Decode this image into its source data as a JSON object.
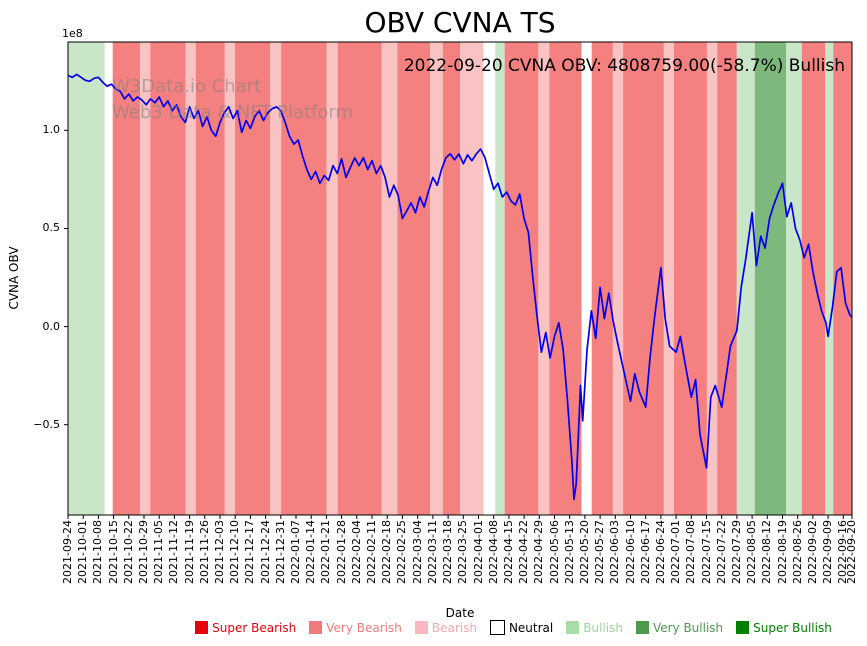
{
  "title": "OBV CVNA TS",
  "annotation": "2022-09-20 CVNA OBV: 4808759.00(-58.7%) Bullish",
  "watermark": {
    "line1": "W3Data.io Chart",
    "line2": "Web3 Data & NFT Platform"
  },
  "chart_data": {
    "type": "line",
    "title": "OBV CVNA TS",
    "xlabel": "Date",
    "ylabel": "CVNA OBV",
    "y_offset_label": "1e8",
    "ylim": [
      -0.96,
      1.45
    ],
    "ytick_values": [
      1.0,
      0.5,
      0.0,
      -0.5
    ],
    "ytick_labels": [
      "1.0",
      "0.5",
      "0.0",
      "−0.5"
    ],
    "x_total_days": 361,
    "xtick_positions": [
      0,
      7,
      14,
      21,
      28,
      35,
      42,
      49,
      56,
      63,
      70,
      77,
      84,
      91,
      98,
      105,
      112,
      119,
      126,
      133,
      140,
      147,
      154,
      161,
      168,
      175,
      182,
      189,
      196,
      203,
      210,
      217,
      224,
      231,
      238,
      245,
      252,
      259,
      266,
      273,
      280,
      287,
      294,
      301,
      308,
      315,
      322,
      329,
      336,
      343,
      350,
      357,
      361
    ],
    "xtick_labels": [
      "2021-09-24",
      "2021-10-01",
      "2021-10-08",
      "2021-10-15",
      "2021-10-22",
      "2021-10-29",
      "2021-11-05",
      "2021-11-12",
      "2021-11-19",
      "2021-11-26",
      "2021-12-03",
      "2021-12-10",
      "2021-12-17",
      "2021-12-24",
      "2021-12-31",
      "2022-01-07",
      "2022-01-14",
      "2022-01-21",
      "2022-01-28",
      "2022-02-04",
      "2022-02-11",
      "2022-02-18",
      "2022-02-25",
      "2022-03-04",
      "2022-03-11",
      "2022-03-18",
      "2022-03-25",
      "2022-04-01",
      "2022-04-08",
      "2022-04-15",
      "2022-04-22",
      "2022-04-29",
      "2022-05-06",
      "2022-05-13",
      "2022-05-20",
      "2022-05-27",
      "2022-06-03",
      "2022-06-10",
      "2022-06-17",
      "2022-06-24",
      "2022-07-01",
      "2022-07-08",
      "2022-07-15",
      "2022-07-22",
      "2022-07-29",
      "2022-08-05",
      "2022-08-12",
      "2022-08-19",
      "2022-08-26",
      "2022-09-02",
      "2022-09-09",
      "2022-09-16",
      "2022-09-20"
    ],
    "series": [
      {
        "name": "CVNA OBV",
        "color": "#0000ee",
        "units": "1e8",
        "points": [
          [
            0,
            1.28
          ],
          [
            2,
            1.27
          ],
          [
            4,
            1.285
          ],
          [
            6,
            1.27
          ],
          [
            8,
            1.255
          ],
          [
            10,
            1.25
          ],
          [
            12,
            1.265
          ],
          [
            14,
            1.27
          ],
          [
            16,
            1.245
          ],
          [
            18,
            1.225
          ],
          [
            20,
            1.235
          ],
          [
            22,
            1.21
          ],
          [
            24,
            1.2
          ],
          [
            26,
            1.16
          ],
          [
            28,
            1.185
          ],
          [
            30,
            1.15
          ],
          [
            32,
            1.17
          ],
          [
            34,
            1.155
          ],
          [
            36,
            1.13
          ],
          [
            38,
            1.16
          ],
          [
            40,
            1.14
          ],
          [
            42,
            1.17
          ],
          [
            44,
            1.12
          ],
          [
            46,
            1.15
          ],
          [
            48,
            1.1
          ],
          [
            50,
            1.13
          ],
          [
            52,
            1.07
          ],
          [
            54,
            1.04
          ],
          [
            56,
            1.12
          ],
          [
            58,
            1.06
          ],
          [
            60,
            1.1
          ],
          [
            62,
            1.02
          ],
          [
            64,
            1.07
          ],
          [
            66,
            1.0
          ],
          [
            68,
            0.97
          ],
          [
            70,
            1.04
          ],
          [
            72,
            1.09
          ],
          [
            74,
            1.12
          ],
          [
            76,
            1.06
          ],
          [
            78,
            1.1
          ],
          [
            80,
            0.99
          ],
          [
            82,
            1.05
          ],
          [
            84,
            1.01
          ],
          [
            86,
            1.07
          ],
          [
            88,
            1.1
          ],
          [
            90,
            1.05
          ],
          [
            92,
            1.09
          ],
          [
            94,
            1.11
          ],
          [
            96,
            1.12
          ],
          [
            98,
            1.1
          ],
          [
            100,
            1.04
          ],
          [
            102,
            0.97
          ],
          [
            104,
            0.93
          ],
          [
            106,
            0.95
          ],
          [
            108,
            0.87
          ],
          [
            110,
            0.8
          ],
          [
            112,
            0.75
          ],
          [
            114,
            0.79
          ],
          [
            116,
            0.73
          ],
          [
            118,
            0.77
          ],
          [
            120,
            0.745
          ],
          [
            122,
            0.82
          ],
          [
            124,
            0.78
          ],
          [
            126,
            0.855
          ],
          [
            128,
            0.76
          ],
          [
            130,
            0.81
          ],
          [
            132,
            0.86
          ],
          [
            134,
            0.82
          ],
          [
            136,
            0.86
          ],
          [
            138,
            0.8
          ],
          [
            140,
            0.845
          ],
          [
            142,
            0.78
          ],
          [
            144,
            0.82
          ],
          [
            146,
            0.76
          ],
          [
            148,
            0.66
          ],
          [
            150,
            0.72
          ],
          [
            152,
            0.67
          ],
          [
            154,
            0.55
          ],
          [
            156,
            0.59
          ],
          [
            158,
            0.63
          ],
          [
            160,
            0.58
          ],
          [
            162,
            0.66
          ],
          [
            164,
            0.61
          ],
          [
            166,
            0.69
          ],
          [
            168,
            0.76
          ],
          [
            170,
            0.72
          ],
          [
            172,
            0.8
          ],
          [
            174,
            0.86
          ],
          [
            176,
            0.88
          ],
          [
            178,
            0.85
          ],
          [
            180,
            0.88
          ],
          [
            182,
            0.83
          ],
          [
            184,
            0.875
          ],
          [
            186,
            0.845
          ],
          [
            188,
            0.88
          ],
          [
            190,
            0.905
          ],
          [
            192,
            0.86
          ],
          [
            194,
            0.78
          ],
          [
            196,
            0.7
          ],
          [
            198,
            0.73
          ],
          [
            200,
            0.66
          ],
          [
            202,
            0.685
          ],
          [
            204,
            0.64
          ],
          [
            206,
            0.62
          ],
          [
            208,
            0.675
          ],
          [
            210,
            0.55
          ],
          [
            212,
            0.48
          ],
          [
            214,
            0.25
          ],
          [
            216,
            0.05
          ],
          [
            218,
            -0.13
          ],
          [
            220,
            -0.03
          ],
          [
            222,
            -0.16
          ],
          [
            224,
            -0.05
          ],
          [
            226,
            0.02
          ],
          [
            228,
            -0.12
          ],
          [
            230,
            -0.38
          ],
          [
            232,
            -0.68
          ],
          [
            233,
            -0.88
          ],
          [
            234,
            -0.8
          ],
          [
            235,
            -0.55
          ],
          [
            236,
            -0.3
          ],
          [
            237,
            -0.48
          ],
          [
            239,
            -0.12
          ],
          [
            241,
            0.08
          ],
          [
            243,
            -0.06
          ],
          [
            245,
            0.2
          ],
          [
            247,
            0.04
          ],
          [
            249,
            0.17
          ],
          [
            251,
            0.03
          ],
          [
            253,
            -0.08
          ],
          [
            255,
            -0.18
          ],
          [
            257,
            -0.28
          ],
          [
            259,
            -0.38
          ],
          [
            261,
            -0.24
          ],
          [
            263,
            -0.33
          ],
          [
            266,
            -0.41
          ],
          [
            268,
            -0.16
          ],
          [
            270,
            0.04
          ],
          [
            273,
            0.3
          ],
          [
            275,
            0.04
          ],
          [
            277,
            -0.1
          ],
          [
            280,
            -0.13
          ],
          [
            282,
            -0.05
          ],
          [
            284,
            -0.18
          ],
          [
            287,
            -0.36
          ],
          [
            289,
            -0.27
          ],
          [
            291,
            -0.55
          ],
          [
            294,
            -0.72
          ],
          [
            296,
            -0.36
          ],
          [
            298,
            -0.3
          ],
          [
            301,
            -0.41
          ],
          [
            303,
            -0.26
          ],
          [
            305,
            -0.1
          ],
          [
            308,
            -0.02
          ],
          [
            310,
            0.2
          ],
          [
            312,
            0.34
          ],
          [
            315,
            0.58
          ],
          [
            317,
            0.31
          ],
          [
            319,
            0.46
          ],
          [
            321,
            0.4
          ],
          [
            323,
            0.55
          ],
          [
            325,
            0.62
          ],
          [
            327,
            0.68
          ],
          [
            329,
            0.73
          ],
          [
            331,
            0.56
          ],
          [
            333,
            0.63
          ],
          [
            335,
            0.5
          ],
          [
            337,
            0.44
          ],
          [
            339,
            0.35
          ],
          [
            341,
            0.42
          ],
          [
            343,
            0.28
          ],
          [
            345,
            0.17
          ],
          [
            347,
            0.08
          ],
          [
            349,
            0.02
          ],
          [
            350,
            -0.05
          ],
          [
            352,
            0.1
          ],
          [
            354,
            0.28
          ],
          [
            356,
            0.3
          ],
          [
            358,
            0.12
          ],
          [
            360,
            0.06
          ],
          [
            361,
            0.048
          ]
        ]
      }
    ],
    "bands": [
      [
        0,
        0.047,
        "bullish"
      ],
      [
        0.047,
        0.057,
        "neutral"
      ],
      [
        0.057,
        0.092,
        "very_bearish"
      ],
      [
        0.092,
        0.105,
        "bearish"
      ],
      [
        0.105,
        0.15,
        "very_bearish"
      ],
      [
        0.15,
        0.163,
        "bearish"
      ],
      [
        0.163,
        0.2,
        "very_bearish"
      ],
      [
        0.2,
        0.213,
        "bearish"
      ],
      [
        0.213,
        0.258,
        "very_bearish"
      ],
      [
        0.258,
        0.272,
        "bearish"
      ],
      [
        0.272,
        0.33,
        "very_bearish"
      ],
      [
        0.33,
        0.344,
        "bearish"
      ],
      [
        0.344,
        0.4,
        "very_bearish"
      ],
      [
        0.4,
        0.42,
        "bearish"
      ],
      [
        0.42,
        0.462,
        "very_bearish"
      ],
      [
        0.462,
        0.478,
        "bearish"
      ],
      [
        0.478,
        0.5,
        "very_bearish"
      ],
      [
        0.5,
        0.53,
        "bearish"
      ],
      [
        0.53,
        0.545,
        "neutral"
      ],
      [
        0.545,
        0.557,
        "bullish"
      ],
      [
        0.557,
        0.6,
        "very_bearish"
      ],
      [
        0.6,
        0.614,
        "bearish"
      ],
      [
        0.614,
        0.655,
        "very_bearish"
      ],
      [
        0.655,
        0.668,
        "neutral"
      ],
      [
        0.668,
        0.695,
        "very_bearish"
      ],
      [
        0.695,
        0.708,
        "bearish"
      ],
      [
        0.708,
        0.76,
        "very_bearish"
      ],
      [
        0.76,
        0.773,
        "bearish"
      ],
      [
        0.773,
        0.815,
        "very_bearish"
      ],
      [
        0.815,
        0.828,
        "bearish"
      ],
      [
        0.828,
        0.853,
        "very_bearish"
      ],
      [
        0.853,
        0.876,
        "bullish"
      ],
      [
        0.876,
        0.916,
        "very_bullish"
      ],
      [
        0.916,
        0.936,
        "bullish"
      ],
      [
        0.936,
        0.966,
        "very_bearish"
      ],
      [
        0.966,
        0.976,
        "bullish"
      ],
      [
        0.976,
        1.0,
        "very_bearish"
      ]
    ],
    "band_colors": {
      "super_bearish": "#e60000",
      "very_bearish": "#f58080",
      "bearish": "#fac3c3",
      "neutral": "#ffffff",
      "bullish": "#c9e6c9",
      "very_bullish": "#7db97d",
      "super_bullish": "#008000"
    }
  },
  "legend": {
    "items": [
      {
        "key": "super-bearish",
        "label": "Super Bearish",
        "color": "#e8000b",
        "text_color": "#e8000b"
      },
      {
        "key": "very-bearish",
        "label": "Very Bearish",
        "color": "#ef7a7a",
        "text_color": "#ef7a7a"
      },
      {
        "key": "bearish",
        "label": "Bearish",
        "color": "#f8b8c0",
        "text_color": "#f4a6b0"
      },
      {
        "key": "neutral",
        "label": "Neutral",
        "color": "#ffffff",
        "text_color": "#000000"
      },
      {
        "key": "bullish",
        "label": "Bullish",
        "color": "#a8dca8",
        "text_color": "#9fd49f"
      },
      {
        "key": "very-bullish",
        "label": "Very Bullish",
        "color": "#4c9b4c",
        "text_color": "#4c9b4c"
      },
      {
        "key": "super-bullish",
        "label": "Super Bullish",
        "color": "#008000",
        "text_color": "#008000"
      }
    ]
  }
}
